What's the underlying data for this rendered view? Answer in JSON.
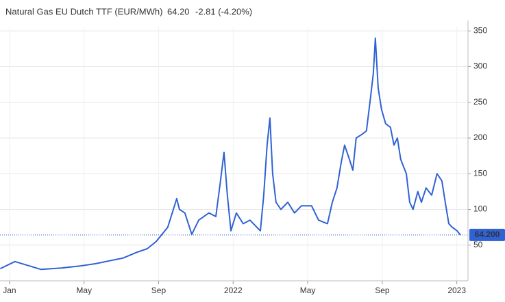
{
  "chart_data": {
    "type": "line",
    "title": "Natural Gas EU Dutch TTF (EUR/MWh)",
    "price": "64.20",
    "change": "-2.81 (-4.20%)",
    "last_price_label": "64.200",
    "color": "#2f62d4",
    "price_color": "#3a6bc9",
    "change_color": "#d9534f",
    "grid": true,
    "x": [
      -0.5,
      0.29,
      1.69,
      2.79,
      3.82,
      4.63,
      5.37,
      6.1,
      6.84,
      7.39,
      7.87,
      8.49,
      8.97,
      9.12,
      9.41,
      9.78,
      10.15,
      10.7,
      11.07,
      11.32,
      11.51,
      11.69,
      11.88,
      12.17,
      12.54,
      12.9,
      13.27,
      13.46,
      13.64,
      13.82,
      13.97,
      14.12,
      14.3,
      14.56,
      14.93,
      15.29,
      15.66,
      16.21,
      16.58,
      17.06,
      17.32,
      17.57,
      17.79,
      17.98,
      18.24,
      18.42,
      18.6,
      18.9,
      19.15,
      19.34,
      19.52,
      19.63,
      19.78,
      19.96,
      20.18,
      20.44,
      20.63,
      20.81,
      20.99,
      21.29,
      21.47,
      21.65,
      21.91,
      22.1,
      22.35,
      22.65,
      22.94,
      23.2,
      23.38,
      23.57,
      23.75,
      24.01,
      24.19
    ],
    "values": [
      17,
      27,
      16,
      18,
      21,
      24,
      28,
      32,
      40,
      45,
      55,
      75,
      115,
      100,
      95,
      65,
      85,
      95,
      90,
      140,
      180,
      120,
      70,
      95,
      80,
      85,
      75,
      70,
      120,
      190,
      228,
      150,
      110,
      100,
      110,
      95,
      105,
      105,
      85,
      80,
      110,
      130,
      165,
      190,
      170,
      155,
      200,
      205,
      210,
      250,
      290,
      340,
      270,
      240,
      220,
      215,
      190,
      200,
      170,
      150,
      110,
      100,
      125,
      110,
      130,
      120,
      150,
      140,
      110,
      80,
      75,
      70,
      64.2
    ],
    "xlim": [
      -0.51,
      24.6
    ],
    "xticks": [
      {
        "value": 0,
        "label": "Jan"
      },
      {
        "value": 4,
        "label": "May"
      },
      {
        "value": 8,
        "label": "Sep"
      },
      {
        "value": 12,
        "label": "2022"
      },
      {
        "value": 16,
        "label": "May"
      },
      {
        "value": 20,
        "label": "Sep"
      },
      {
        "value": 24,
        "label": "2023"
      }
    ],
    "ylim": [
      0,
      355
    ],
    "yticks": [
      50,
      100,
      150,
      200,
      250,
      300,
      350
    ]
  }
}
